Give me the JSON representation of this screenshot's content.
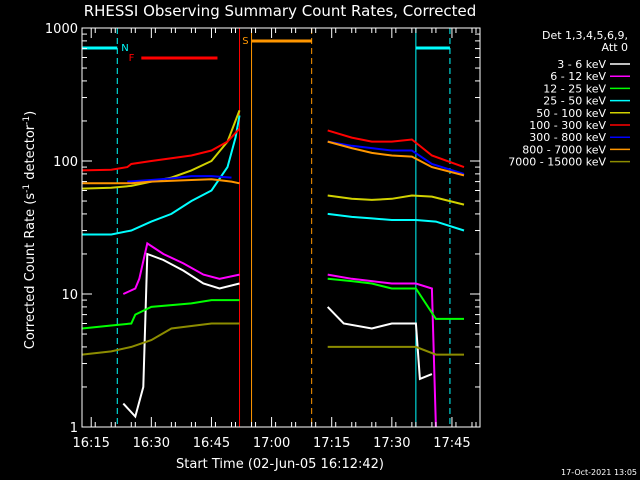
{
  "chart_data": {
    "type": "line",
    "title": "RHESSI Observing Summary Count Rates, Corrected",
    "xlabel": "Start Time (02-Jun-05 16:12:42)",
    "ylabel_main": "Corrected Count Rate (s",
    "ylabel_sup1": "-1",
    "ylabel_mid": " detector",
    "ylabel_sup2": "-1",
    "ylabel_end": ")",
    "y_scale": "log",
    "ylim": [
      1,
      1000
    ],
    "xlim": [
      "16:12:42",
      "17:52:00"
    ],
    "x_ticks": [
      "16:15",
      "16:30",
      "16:45",
      "17:00",
      "17:15",
      "17:30",
      "17:45"
    ],
    "y_ticks": [
      "1",
      "10",
      "100",
      "1000"
    ],
    "legend": {
      "placement": "right",
      "header_line1": "Det 1,3,4,5,6,9,",
      "header_line2": "Att 0",
      "entries": [
        {
          "label": "3 - 6 keV",
          "color": "#ffffff"
        },
        {
          "label": "6 - 12 keV",
          "color": "#ff00ff"
        },
        {
          "label": "12 - 25 keV",
          "color": "#00ff00"
        },
        {
          "label": "25 - 50 keV",
          "color": "#00ffff"
        },
        {
          "label": "50 - 100 keV",
          "color": "#d2d200"
        },
        {
          "label": "100 - 300 keV",
          "color": "#ff0000"
        },
        {
          "label": "300 - 800 keV",
          "color": "#0000ff"
        },
        {
          "label": "800 - 7000 keV",
          "color": "#ff9600"
        },
        {
          "label": "7000 - 15000 keV",
          "color": "#8c8c00"
        }
      ]
    },
    "annotations": {
      "night_label": "N",
      "flare_label": "F",
      "saa_label": "S",
      "night_color": "#00ffff",
      "flare_color": "#ff0000",
      "saa_color": "#ff9600"
    },
    "series": [
      {
        "name": "3 - 6 keV",
        "color": "#ffffff",
        "segments": [
          [
            [
              "16:23",
              1.5
            ],
            [
              "16:26",
              1.2
            ],
            [
              "16:28",
              2
            ],
            [
              "16:29",
              20
            ],
            [
              "16:33",
              18
            ],
            [
              "16:38",
              15
            ],
            [
              "16:43",
              12
            ],
            [
              "16:47",
              11
            ],
            [
              "16:52",
              12
            ]
          ],
          [
            [
              "17:14",
              8
            ],
            [
              "17:18",
              6
            ],
            [
              "17:25",
              5.5
            ],
            [
              "17:30",
              6
            ],
            [
              "17:36",
              6
            ],
            [
              "17:37",
              2.3
            ],
            [
              "17:40",
              2.5
            ]
          ]
        ]
      },
      {
        "name": "6 - 12 keV",
        "color": "#ff00ff",
        "segments": [
          [
            [
              "16:23",
              10
            ],
            [
              "16:26",
              11
            ],
            [
              "16:27",
              13
            ],
            [
              "16:29",
              24
            ],
            [
              "16:33",
              20
            ],
            [
              "16:38",
              17
            ],
            [
              "16:43",
              14
            ],
            [
              "16:47",
              13
            ],
            [
              "16:52",
              14
            ]
          ],
          [
            [
              "17:14",
              14
            ],
            [
              "17:20",
              13
            ],
            [
              "17:25",
              12.5
            ],
            [
              "17:30",
              12
            ],
            [
              "17:36",
              12
            ],
            [
              "17:40",
              11
            ],
            [
              "17:41",
              1
            ]
          ]
        ]
      },
      {
        "name": "12 - 25 keV",
        "color": "#00ff00",
        "segments": [
          [
            [
              "16:12:42",
              5.5
            ],
            [
              "16:20",
              5.8
            ],
            [
              "16:25",
              6
            ],
            [
              "16:26",
              7
            ],
            [
              "16:30",
              8
            ],
            [
              "16:40",
              8.5
            ],
            [
              "16:45",
              9
            ],
            [
              "16:52",
              9
            ]
          ],
          [
            [
              "17:14",
              13
            ],
            [
              "17:20",
              12.5
            ],
            [
              "17:25",
              12
            ],
            [
              "17:30",
              11
            ],
            [
              "17:36",
              11
            ],
            [
              "17:41",
              6.5
            ],
            [
              "17:48",
              6.5
            ]
          ]
        ]
      },
      {
        "name": "25 - 50 keV",
        "color": "#00ffff",
        "segments": [
          [
            [
              "16:12:42",
              28
            ],
            [
              "16:20",
              28
            ],
            [
              "16:25",
              30
            ],
            [
              "16:30",
              35
            ],
            [
              "16:35",
              40
            ],
            [
              "16:40",
              50
            ],
            [
              "16:45",
              60
            ],
            [
              "16:49",
              90
            ],
            [
              "16:51",
              150
            ],
            [
              "16:52",
              220
            ]
          ],
          [
            [
              "17:14",
              40
            ],
            [
              "17:20",
              38
            ],
            [
              "17:25",
              37
            ],
            [
              "17:30",
              36
            ],
            [
              "17:36",
              36
            ],
            [
              "17:41",
              35
            ],
            [
              "17:48",
              30
            ]
          ]
        ]
      },
      {
        "name": "50 - 100 keV",
        "color": "#d2d200",
        "segments": [
          [
            [
              "16:12:42",
              62
            ],
            [
              "16:20",
              63
            ],
            [
              "16:25",
              65
            ],
            [
              "16:30",
              70
            ],
            [
              "16:35",
              75
            ],
            [
              "16:40",
              85
            ],
            [
              "16:45",
              100
            ],
            [
              "16:49",
              140
            ],
            [
              "16:52",
              240
            ]
          ],
          [
            [
              "17:14",
              55
            ],
            [
              "17:20",
              52
            ],
            [
              "17:25",
              51
            ],
            [
              "17:30",
              52
            ],
            [
              "17:35",
              55
            ],
            [
              "17:40",
              54
            ],
            [
              "17:48",
              47
            ]
          ]
        ]
      },
      {
        "name": "100 - 300 keV",
        "color": "#ff0000",
        "segments": [
          [
            [
              "16:12:42",
              85
            ],
            [
              "16:20",
              86
            ],
            [
              "16:24",
              90
            ],
            [
              "16:25",
              95
            ],
            [
              "16:30",
              100
            ],
            [
              "16:40",
              110
            ],
            [
              "16:45",
              120
            ],
            [
              "16:49",
              140
            ],
            [
              "16:52",
              175
            ]
          ],
          [
            [
              "17:14",
              170
            ],
            [
              "17:20",
              150
            ],
            [
              "17:25",
              140
            ],
            [
              "17:30",
              140
            ],
            [
              "17:35",
              145
            ],
            [
              "17:40",
              110
            ],
            [
              "17:48",
              90
            ]
          ]
        ]
      },
      {
        "name": "300 - 800 keV",
        "color": "#0000ff",
        "segments": [
          [
            [
              "16:24",
              70
            ],
            [
              "16:30",
              72
            ],
            [
              "16:35",
              74
            ],
            [
              "16:40",
              77
            ],
            [
              "16:45",
              77
            ],
            [
              "16:50",
              75
            ]
          ],
          [
            [
              "17:14",
              140
            ],
            [
              "17:20",
              130
            ],
            [
              "17:25",
              125
            ],
            [
              "17:30",
              120
            ],
            [
              "17:35",
              120
            ],
            [
              "17:40",
              95
            ],
            [
              "17:48",
              80
            ]
          ]
        ]
      },
      {
        "name": "800 - 7000 keV",
        "color": "#ff9600",
        "segments": [
          [
            [
              "16:12:42",
              68
            ],
            [
              "16:20",
              68
            ],
            [
              "16:25",
              68
            ],
            [
              "16:30",
              70
            ],
            [
              "16:40",
              72
            ],
            [
              "16:45",
              73
            ],
            [
              "16:50",
              70
            ],
            [
              "16:52",
              68
            ]
          ],
          [
            [
              "17:14",
              140
            ],
            [
              "17:20",
              125
            ],
            [
              "17:25",
              115
            ],
            [
              "17:30",
              110
            ],
            [
              "17:35",
              108
            ],
            [
              "17:40",
              90
            ],
            [
              "17:48",
              78
            ]
          ]
        ]
      },
      {
        "name": "7000 - 15000 keV",
        "color": "#8c8c00",
        "segments": [
          [
            [
              "16:12:42",
              3.5
            ],
            [
              "16:20",
              3.7
            ],
            [
              "16:25",
              4
            ],
            [
              "16:30",
              4.5
            ],
            [
              "16:35",
              5.5
            ],
            [
              "16:45",
              6
            ],
            [
              "16:52",
              6
            ]
          ],
          [
            [
              "17:14",
              4
            ],
            [
              "17:20",
              4
            ],
            [
              "17:30",
              4
            ],
            [
              "17:36",
              4
            ],
            [
              "17:41",
              3.5
            ],
            [
              "17:48",
              3.5
            ]
          ]
        ]
      }
    ]
  },
  "footer_timestamp": "17-Oct-2021 13:05"
}
